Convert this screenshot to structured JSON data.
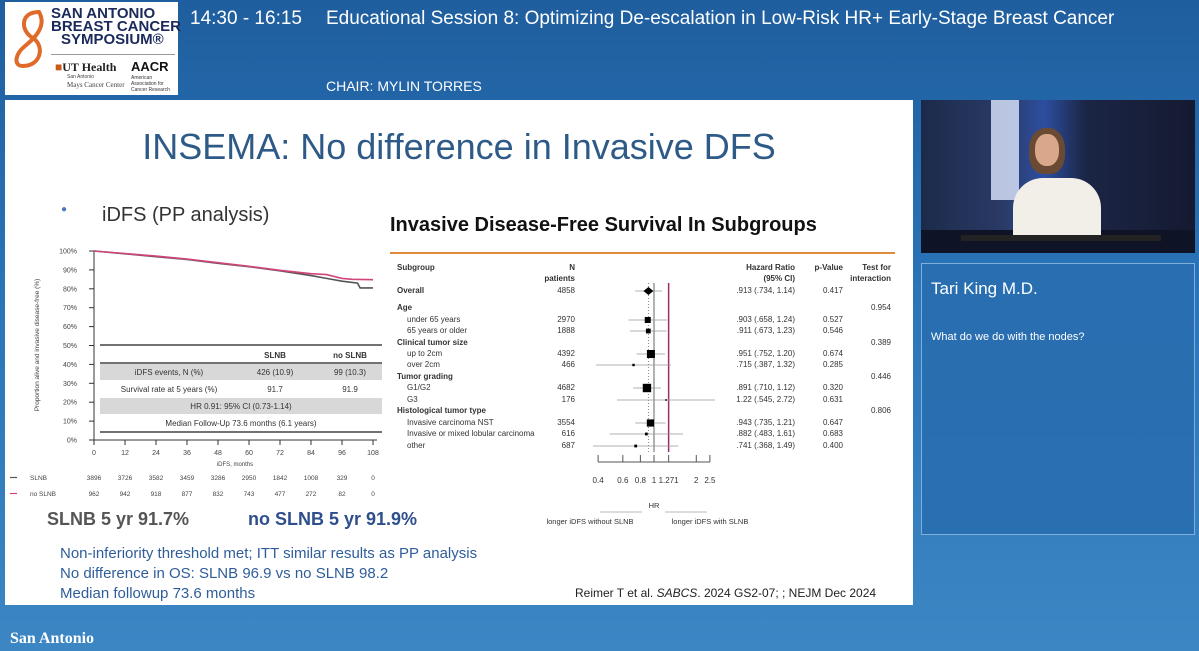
{
  "header": {
    "time": "14:30 - 16:15",
    "title": "Educational Session 8: Optimizing De-escalation in Low-Risk HR+ Early-Stage Breast Cancer",
    "chair": "CHAIR: MYLIN TORRES"
  },
  "logo": {
    "line1": "SAN ANTONIO",
    "line2": "BREAST CANCER",
    "line3": "SYMPOSIUM®",
    "ut": "UT Health",
    "ut_sub": "San Antonio",
    "ut_sub2": "Mays Cancer Center",
    "aacr": "AACR",
    "aacr_sub": "American Association for Cancer Research"
  },
  "speaker": {
    "name": "Tari King M.D.",
    "question": "What do we do with the nodes?"
  },
  "footer": {
    "text": "San Antonio"
  },
  "slide": {
    "title": "INSEMA: No difference in Invasive DFS",
    "bullet": "iDFS (PP analysis)",
    "slnb_summary": "SLNB 5 yr 91.7%",
    "noslnb_summary": "no SLNB 5 yr 91.9%",
    "lines": [
      "Non-inferiority threshold met; ITT similar results as PP analysis",
      "No difference in OS: SLNB 96.9 vs no SLNB 98.2",
      "Median followup 73.6 months"
    ],
    "citation_pre": "Reimer T et al. ",
    "citation_em": "SABCS",
    "citation_post": ". 2024 GS2-07; ; NEJM Dec 2024",
    "km_table": {
      "col1": "SLNB",
      "col2": "no SLNB",
      "row1": [
        "iDFS events, N (%)",
        "426 (10.9)",
        "99 (10.3)"
      ],
      "row2": [
        "Survival rate at 5 years (%)",
        "91.7",
        "91.9"
      ],
      "hr": "HR 0.91: 95% CI (0.73-1.14)",
      "followup": "Median Follow-Up 73.6 months (6.1 years)"
    }
  },
  "colors": {
    "slnb": "#555555",
    "no_slnb": "#d0457a",
    "title": "#2e5a88",
    "accent": "#e08a3c",
    "ref_line": "#9b2d6f"
  },
  "chart_data": [
    {
      "type": "line",
      "title": "iDFS (PP analysis)",
      "xlabel": "iDFS, months",
      "ylabel": "Proportion alive and invasive disease-free (%)",
      "xlim": [
        0,
        108
      ],
      "ylim": [
        0,
        100
      ],
      "xticks": [
        "0",
        "12",
        "24",
        "36",
        "48",
        "60",
        "72",
        "84",
        "96",
        "108"
      ],
      "yticks": [
        "0%",
        "10%",
        "20%",
        "30%",
        "40%",
        "50%",
        "60%",
        "70%",
        "80%",
        "90%",
        "100%"
      ],
      "series": [
        {
          "name": "SLNB",
          "x": [
            0,
            12,
            24,
            36,
            48,
            60,
            72,
            84,
            90,
            96,
            102,
            103,
            108
          ],
          "y": [
            100,
            98.5,
            97,
            95.5,
            93.5,
            91.7,
            89.5,
            87,
            85.5,
            84,
            83,
            80.5,
            80.5
          ]
        },
        {
          "name": "no SLNB",
          "x": [
            0,
            12,
            24,
            36,
            48,
            60,
            72,
            84,
            90,
            96,
            100,
            108
          ],
          "y": [
            100,
            98.7,
            97.3,
            95.7,
            93.8,
            91.9,
            89.8,
            88,
            87.5,
            85.5,
            85,
            84.8
          ]
        }
      ],
      "at_risk": [
        {
          "name": "SLNB",
          "values": [
            "3896",
            "3726",
            "3582",
            "3459",
            "3286",
            "2950",
            "1842",
            "1008",
            "329",
            "0"
          ]
        },
        {
          "name": "no SLNB",
          "values": [
            "962",
            "942",
            "918",
            "877",
            "832",
            "743",
            "477",
            "272",
            "82",
            "0"
          ]
        }
      ]
    },
    {
      "type": "forest",
      "title": "Invasive Disease-Free Survival In Subgroups",
      "headers": {
        "subgroup": "Subgroup",
        "n": "N",
        "n2": "patients",
        "hr": "Hazard Ratio",
        "hr2": "(95% CI)",
        "p": "p-Value",
        "int": "Test for",
        "int2": "interaction"
      },
      "xticks": [
        "0.4",
        "0.6",
        "0.8",
        "1",
        "1.271",
        "2",
        "2.5"
      ],
      "xlabel": "HR",
      "left_label": "longer iDFS without SLNB",
      "right_label": "longer iDFS with SLNB",
      "reference_margin": 1.271,
      "rows": [
        {
          "label": "Overall",
          "head": true,
          "n": "4858",
          "hr": 0.913,
          "lo": 0.734,
          "hi": 1.14,
          "hr_text": ".913 (.734, 1.14)",
          "p": "0.417",
          "int": "",
          "diamond": true
        },
        {
          "label": "Age",
          "head": true,
          "int": "0.954"
        },
        {
          "label": "under 65 years",
          "n": "2970",
          "hr": 0.903,
          "lo": 0.658,
          "hi": 1.24,
          "hr_text": ".903 (.658, 1.24)",
          "p": "0.527",
          "w": 3
        },
        {
          "label": "65 years or older",
          "n": "1888",
          "hr": 0.911,
          "lo": 0.673,
          "hi": 1.23,
          "hr_text": ".911 (.673, 1.23)",
          "p": "0.546",
          "w": 2.4
        },
        {
          "label": "Clinical tumor size",
          "head": true,
          "int": "0.389"
        },
        {
          "label": "up to 2cm",
          "n": "4392",
          "hr": 0.951,
          "lo": 0.752,
          "hi": 1.2,
          "hr_text": ".951 (.752, 1.20)",
          "p": "0.674",
          "w": 4
        },
        {
          "label": "over 2cm",
          "n": "466",
          "hr": 0.715,
          "lo": 0.387,
          "hi": 1.32,
          "hr_text": ".715 (.387, 1.32)",
          "p": "0.285",
          "w": 1.2
        },
        {
          "label": "Tumor grading",
          "head": true,
          "int": "0.446"
        },
        {
          "label": "G1/G2",
          "n": "4682",
          "hr": 0.891,
          "lo": 0.71,
          "hi": 1.12,
          "hr_text": ".891 (.710, 1.12)",
          "p": "0.320",
          "w": 4.2
        },
        {
          "label": "G3",
          "n": "176",
          "hr": 1.22,
          "lo": 0.545,
          "hi": 2.72,
          "hr_text": "1.22 (.545, 2.72)",
          "p": "0.631",
          "w": 0.8
        },
        {
          "label": "Histological tumor type",
          "head": true,
          "int": "0.806"
        },
        {
          "label": "Invasive carcinoma NST",
          "n": "3554",
          "hr": 0.943,
          "lo": 0.735,
          "hi": 1.21,
          "hr_text": ".943 (.735, 1.21)",
          "p": "0.647",
          "w": 3.6
        },
        {
          "label": "Invasive or mixed lobular carcinoma",
          "n": "616",
          "hr": 0.882,
          "lo": 0.483,
          "hi": 1.61,
          "hr_text": ".882 (.483, 1.61)",
          "p": "0.683",
          "w": 1.4
        },
        {
          "label": "other",
          "n": "687",
          "hr": 0.741,
          "lo": 0.368,
          "hi": 1.49,
          "hr_text": ".741 (.368, 1.49)",
          "p": "0.400",
          "w": 1.4
        }
      ]
    }
  ]
}
